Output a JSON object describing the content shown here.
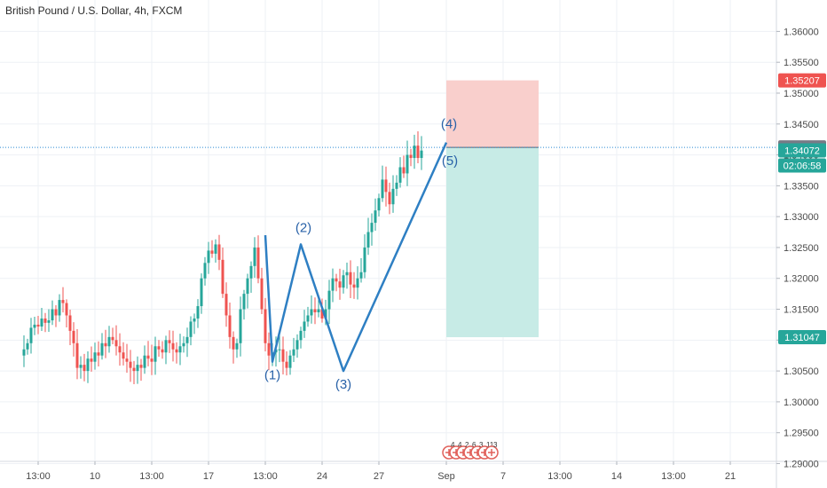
{
  "header": {
    "title": "British Pound / U.S. Dollar, 4h, FXCM"
  },
  "colors": {
    "up": "#26a69a",
    "down": "#ef5350",
    "wave": "#2e7fc3",
    "wave_label": "#2962a8",
    "stop_zone": "#f9cfcc",
    "target_zone": "#c7ebe6",
    "stop_tag": "#ef5350",
    "entry_tag": "#787b86",
    "price_tag": "#26a69a",
    "grid": "#eef1f5",
    "crosshair": "#2a8ad4"
  },
  "chart_data": {
    "type": "candlestick",
    "title": "British Pound / U.S. Dollar, 4h, FXCM",
    "xlabel": "",
    "ylabel": "",
    "ylim": [
      1.2905,
      1.3625
    ],
    "y_ticks": [
      1.29,
      1.295,
      1.3,
      1.305,
      1.31,
      1.315,
      1.32,
      1.325,
      1.33,
      1.335,
      1.34,
      1.345,
      1.35,
      1.355,
      1.36
    ],
    "y_tick_labels": [
      "1.29000",
      "1.29500",
      "1.30000",
      "1.30500",
      "1.31000",
      "1.31500",
      "1.32000",
      "1.32500",
      "1.33000",
      "1.33500",
      "1.34000",
      "1.34500",
      "1.35000",
      "1.35500",
      "1.36000"
    ],
    "xlim": [
      -4,
      170
    ],
    "x_ticks": [
      {
        "index": 0,
        "label": "13:00"
      },
      {
        "index": 16,
        "label": "10"
      },
      {
        "index": 32,
        "label": "13:00"
      },
      {
        "index": 48,
        "label": "17"
      },
      {
        "index": 64,
        "label": "13:00"
      },
      {
        "index": 80,
        "label": "24"
      },
      {
        "index": 96,
        "label": "27"
      },
      {
        "index": 115,
        "label": "Sep"
      },
      {
        "index": 131,
        "label": "7"
      },
      {
        "index": 147,
        "label": "13:00"
      },
      {
        "index": 163,
        "label": "14"
      },
      {
        "index": 179,
        "label": "13:00"
      },
      {
        "index": 195,
        "label": "21"
      }
    ],
    "candles": {
      "start_index": -4,
      "open": [
        1.3075,
        1.3085,
        1.3095,
        1.312,
        1.3125,
        1.3122,
        1.3135,
        1.3128,
        1.3132,
        1.315,
        1.314,
        1.3165,
        1.316,
        1.314,
        1.3115,
        1.3095,
        1.3055,
        1.306,
        1.305,
        1.307,
        1.3065,
        1.308,
        1.3075,
        1.3095,
        1.309,
        1.3105,
        1.31,
        1.309,
        1.308,
        1.307,
        1.3065,
        1.3055,
        1.305,
        1.306,
        1.3055,
        1.3075,
        1.307,
        1.3065,
        1.309,
        1.3085,
        1.308,
        1.31,
        1.3095,
        1.3085,
        1.308,
        1.309,
        1.3095,
        1.3105,
        1.313,
        1.3135,
        1.3155,
        1.32,
        1.3225,
        1.3245,
        1.324,
        1.3255,
        1.323,
        1.3175,
        1.314,
        1.3105,
        1.3085,
        1.3095,
        1.315,
        1.3175,
        1.32,
        1.322,
        1.325,
        1.32,
        1.315,
        1.3095,
        1.3075,
        1.308,
        1.3085,
        1.3085,
        1.3065,
        1.3055,
        1.3075,
        1.3085,
        1.31,
        1.3115,
        1.313,
        1.314,
        1.315,
        1.3145,
        1.315,
        1.3135,
        1.315,
        1.318,
        1.32,
        1.3195,
        1.3185,
        1.3205,
        1.321,
        1.319,
        1.3185,
        1.32,
        1.321,
        1.325,
        1.3275,
        1.329,
        1.331,
        1.333,
        1.336,
        1.334,
        1.332,
        1.3345,
        1.3355,
        1.338,
        1.337,
        1.34,
        1.3395,
        1.3415,
        1.3395
      ],
      "close": [
        1.3085,
        1.3095,
        1.312,
        1.3125,
        1.3122,
        1.3135,
        1.3128,
        1.3132,
        1.315,
        1.314,
        1.3165,
        1.316,
        1.314,
        1.3115,
        1.3095,
        1.3055,
        1.306,
        1.305,
        1.307,
        1.3065,
        1.308,
        1.3075,
        1.3095,
        1.309,
        1.3105,
        1.31,
        1.309,
        1.308,
        1.307,
        1.3065,
        1.3055,
        1.305,
        1.306,
        1.3055,
        1.3075,
        1.307,
        1.3065,
        1.309,
        1.3085,
        1.308,
        1.31,
        1.3095,
        1.3085,
        1.308,
        1.309,
        1.3095,
        1.3105,
        1.313,
        1.3135,
        1.3155,
        1.32,
        1.3225,
        1.3245,
        1.324,
        1.3255,
        1.323,
        1.3175,
        1.314,
        1.3105,
        1.3085,
        1.3095,
        1.315,
        1.3175,
        1.32,
        1.322,
        1.325,
        1.32,
        1.315,
        1.3095,
        1.3075,
        1.308,
        1.3085,
        1.3085,
        1.3065,
        1.3055,
        1.3075,
        1.3085,
        1.31,
        1.3115,
        1.313,
        1.314,
        1.315,
        1.3145,
        1.315,
        1.3135,
        1.315,
        1.318,
        1.32,
        1.3195,
        1.3185,
        1.3205,
        1.321,
        1.319,
        1.3185,
        1.32,
        1.321,
        1.325,
        1.3275,
        1.329,
        1.331,
        1.333,
        1.336,
        1.334,
        1.332,
        1.3345,
        1.3355,
        1.338,
        1.337,
        1.34,
        1.3395,
        1.3415,
        1.3395,
        1.3407
      ]
    },
    "waves": [
      {
        "label": "(1)",
        "index": 66,
        "price": 1.3065
      },
      {
        "label": "(2)",
        "index": 74,
        "price": 1.3255
      },
      {
        "label": "(3)",
        "index": 86,
        "price": 1.305
      },
      {
        "label": "(4)",
        "index": 115,
        "price": 1.342
      },
      {
        "label": "(5)",
        "index": 115,
        "price": 1.34121
      }
    ],
    "wave_start": {
      "index": 64,
      "price": 1.327
    },
    "position": {
      "start_index": 115,
      "end_index": 141,
      "stop": 1.35207,
      "entry": 1.34121,
      "target": 1.31047
    },
    "price_tags": [
      {
        "label": "1.35207",
        "value": 1.35207,
        "kind": "stop"
      },
      {
        "label": "1.34121",
        "value": 1.34121,
        "kind": "entry"
      },
      {
        "label": "1.34072",
        "value": 1.34072,
        "kind": "price"
      },
      {
        "label": "1.31047",
        "value": 1.31047,
        "kind": "target"
      }
    ],
    "countdown": "02:06:58",
    "crosshair_price": 1.34121,
    "event_markers": [
      {
        "index": 114,
        "count": "4"
      },
      {
        "index": 116,
        "count": "4"
      },
      {
        "index": 118,
        "count": "2"
      },
      {
        "index": 120,
        "count": "6"
      },
      {
        "index": 122,
        "count": "3"
      },
      {
        "index": 124,
        "count": "11"
      },
      {
        "index": 126,
        "count": "3"
      }
    ],
    "grid": true
  }
}
